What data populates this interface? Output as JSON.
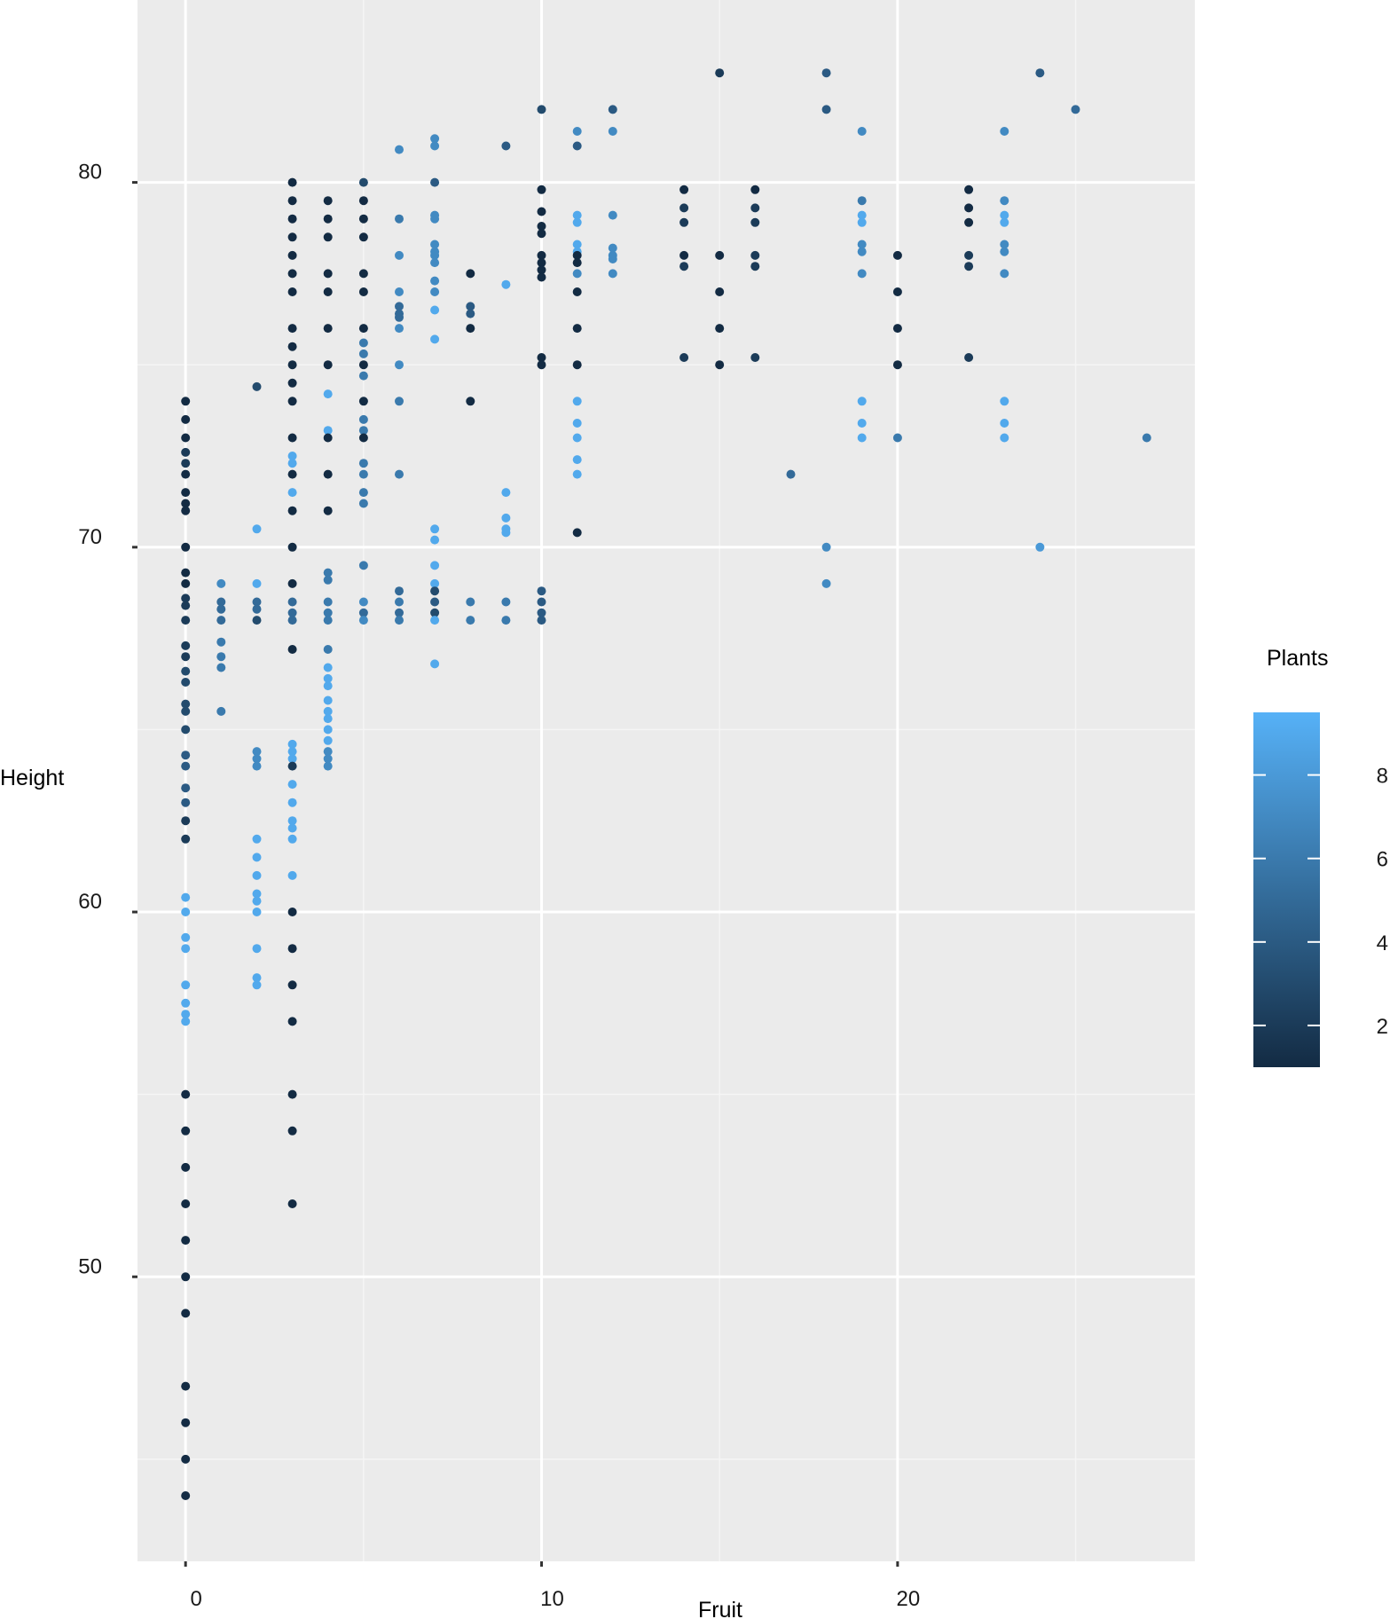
{
  "chart_data": {
    "type": "scatter",
    "title": "",
    "xlabel": "Fruit",
    "ylabel": "Height",
    "xlim": [
      -1.35,
      28.35
    ],
    "ylim": [
      42.2,
      85.0
    ],
    "x_major_ticks": [
      0,
      10,
      20
    ],
    "x_minor_ticks": [
      5,
      15,
      25
    ],
    "y_major_ticks": [
      50,
      60,
      70,
      80
    ],
    "y_minor_ticks": [
      45,
      55,
      65,
      75
    ],
    "grid": true,
    "colorbar": {
      "title": "Plants",
      "min": 1,
      "max": 9.5,
      "ticks": [
        2,
        4,
        6,
        8
      ],
      "low_color": "#132B43",
      "high_color": "#56B1F7",
      "placement": "right"
    },
    "colors": {
      "panel_background": "#EBEBEB",
      "grid_major": "#FFFFFF",
      "grid_minor": "#F5F5F5"
    },
    "points": [
      [
        0,
        74,
        1
      ],
      [
        0,
        73.5,
        1
      ],
      [
        0,
        73,
        1
      ],
      [
        0,
        72.6,
        2
      ],
      [
        0,
        72.3,
        2
      ],
      [
        0,
        72,
        1
      ],
      [
        0,
        71.5,
        1
      ],
      [
        0,
        71.2,
        1
      ],
      [
        0,
        71,
        1
      ],
      [
        0,
        70,
        1
      ],
      [
        0,
        69.3,
        1
      ],
      [
        0,
        69,
        1
      ],
      [
        0,
        68.6,
        2
      ],
      [
        0,
        68.4,
        2
      ],
      [
        0,
        68,
        2
      ],
      [
        0,
        67.3,
        2
      ],
      [
        0,
        67,
        2
      ],
      [
        0,
        66.6,
        3
      ],
      [
        0,
        66.3,
        3
      ],
      [
        0,
        65.7,
        3
      ],
      [
        0,
        65.5,
        3
      ],
      [
        0,
        65,
        3
      ],
      [
        0,
        64.3,
        4
      ],
      [
        0,
        64,
        4
      ],
      [
        0,
        63.4,
        4
      ],
      [
        0,
        63,
        4
      ],
      [
        0,
        62.5,
        2
      ],
      [
        0,
        62,
        2
      ],
      [
        0,
        60.4,
        9
      ],
      [
        0,
        60,
        9
      ],
      [
        0,
        59.3,
        9
      ],
      [
        0,
        59,
        9
      ],
      [
        0,
        58,
        9
      ],
      [
        0,
        57.5,
        9
      ],
      [
        0,
        57.2,
        9
      ],
      [
        0,
        57,
        9
      ],
      [
        0,
        55,
        1
      ],
      [
        0,
        54,
        1
      ],
      [
        0,
        53,
        1
      ],
      [
        0,
        52,
        1
      ],
      [
        0,
        51,
        1
      ],
      [
        0,
        50,
        1
      ],
      [
        0,
        49,
        1
      ],
      [
        0,
        47,
        1
      ],
      [
        0,
        46,
        1
      ],
      [
        0,
        45,
        1
      ],
      [
        0,
        44,
        1
      ],
      [
        1,
        69,
        7
      ],
      [
        1,
        68.5,
        5
      ],
      [
        1,
        68.3,
        5
      ],
      [
        1,
        68,
        5
      ],
      [
        1,
        67.4,
        6
      ],
      [
        1,
        67,
        6
      ],
      [
        1,
        66.7,
        6
      ],
      [
        1,
        65.5,
        6
      ],
      [
        2,
        74.4,
        3
      ],
      [
        2,
        70.5,
        9
      ],
      [
        2,
        69,
        9
      ],
      [
        2,
        68.5,
        5
      ],
      [
        2,
        68.3,
        5
      ],
      [
        2,
        68,
        3
      ],
      [
        2,
        64.4,
        7
      ],
      [
        2,
        64.2,
        7
      ],
      [
        2,
        64,
        7
      ],
      [
        2,
        62,
        9
      ],
      [
        2,
        61.5,
        9
      ],
      [
        2,
        61,
        9
      ],
      [
        2,
        60.5,
        9
      ],
      [
        2,
        60.3,
        9
      ],
      [
        2,
        60,
        9
      ],
      [
        2,
        59,
        9
      ],
      [
        2,
        58.2,
        9
      ],
      [
        2,
        58,
        9
      ],
      [
        3,
        80,
        1
      ],
      [
        3,
        79.5,
        1
      ],
      [
        3,
        79,
        1
      ],
      [
        3,
        78.5,
        1
      ],
      [
        3,
        78,
        1
      ],
      [
        3,
        77.5,
        1
      ],
      [
        3,
        77,
        1
      ],
      [
        3,
        76,
        1
      ],
      [
        3,
        75.5,
        1
      ],
      [
        3,
        75,
        1
      ],
      [
        3,
        74.5,
        1
      ],
      [
        3,
        74,
        1
      ],
      [
        3,
        73,
        1
      ],
      [
        3,
        72.5,
        9
      ],
      [
        3,
        72.3,
        9
      ],
      [
        3,
        72,
        1
      ],
      [
        3,
        71.5,
        9
      ],
      [
        3,
        71,
        1
      ],
      [
        3,
        70,
        1
      ],
      [
        3,
        69,
        1
      ],
      [
        3,
        68.5,
        5
      ],
      [
        3,
        68.2,
        5
      ],
      [
        3,
        68,
        5
      ],
      [
        3,
        67.2,
        1
      ],
      [
        3,
        64.6,
        9
      ],
      [
        3,
        64.4,
        9
      ],
      [
        3,
        64.2,
        9
      ],
      [
        3,
        64,
        2
      ],
      [
        3,
        63.5,
        9
      ],
      [
        3,
        63,
        9
      ],
      [
        3,
        62.5,
        9
      ],
      [
        3,
        62.3,
        9
      ],
      [
        3,
        62,
        9
      ],
      [
        3,
        61,
        9
      ],
      [
        3,
        60,
        1
      ],
      [
        3,
        59,
        1
      ],
      [
        3,
        58,
        1
      ],
      [
        3,
        57,
        1
      ],
      [
        3,
        55,
        1
      ],
      [
        3,
        54,
        1
      ],
      [
        3,
        52,
        1
      ],
      [
        4,
        79.5,
        1
      ],
      [
        4,
        79,
        1
      ],
      [
        4,
        78.5,
        1
      ],
      [
        4,
        77.5,
        1
      ],
      [
        4,
        77,
        1
      ],
      [
        4,
        76,
        1
      ],
      [
        4,
        75,
        1
      ],
      [
        4,
        74.2,
        9
      ],
      [
        4,
        73.2,
        9
      ],
      [
        4,
        73,
        1
      ],
      [
        4,
        72,
        1
      ],
      [
        4,
        71,
        1
      ],
      [
        4,
        69.3,
        6
      ],
      [
        4,
        69.1,
        6
      ],
      [
        4,
        68.5,
        6
      ],
      [
        4,
        68.2,
        6
      ],
      [
        4,
        68,
        6
      ],
      [
        4,
        67.2,
        6
      ],
      [
        4,
        66.7,
        9
      ],
      [
        4,
        66.4,
        9
      ],
      [
        4,
        66.2,
        9
      ],
      [
        4,
        65.8,
        9
      ],
      [
        4,
        65.5,
        9
      ],
      [
        4,
        65.3,
        9
      ],
      [
        4,
        65,
        9
      ],
      [
        4,
        64.7,
        9
      ],
      [
        4,
        64.4,
        7
      ],
      [
        4,
        64.2,
        7
      ],
      [
        4,
        64,
        7
      ],
      [
        5,
        80,
        3
      ],
      [
        5,
        79.5,
        1
      ],
      [
        5,
        79,
        1
      ],
      [
        5,
        78.5,
        1
      ],
      [
        5,
        77.5,
        1
      ],
      [
        5,
        77,
        1
      ],
      [
        5,
        76,
        1
      ],
      [
        5,
        75.6,
        6
      ],
      [
        5,
        75.3,
        6
      ],
      [
        5,
        75,
        1
      ],
      [
        5,
        74.7,
        6
      ],
      [
        5,
        74,
        1
      ],
      [
        5,
        73.5,
        6
      ],
      [
        5,
        73.2,
        6
      ],
      [
        5,
        73,
        1
      ],
      [
        5,
        72.3,
        6
      ],
      [
        5,
        72,
        6
      ],
      [
        5,
        71.5,
        6
      ],
      [
        5,
        71.2,
        6
      ],
      [
        5,
        69.5,
        6
      ],
      [
        5,
        68.5,
        7
      ],
      [
        5,
        68.2,
        5
      ],
      [
        5,
        68,
        7
      ],
      [
        6,
        80.9,
        7
      ],
      [
        6,
        79,
        6
      ],
      [
        6,
        78,
        7
      ],
      [
        6,
        77,
        7
      ],
      [
        6,
        76.6,
        5
      ],
      [
        6,
        76.4,
        5
      ],
      [
        6,
        76.3,
        5
      ],
      [
        6,
        76,
        7
      ],
      [
        6,
        75,
        7
      ],
      [
        6,
        74,
        6
      ],
      [
        6,
        72,
        6
      ],
      [
        6,
        68.8,
        5
      ],
      [
        6,
        68.5,
        6
      ],
      [
        6,
        68.2,
        5
      ],
      [
        6,
        68,
        6
      ],
      [
        7,
        81.2,
        7
      ],
      [
        7,
        81,
        7
      ],
      [
        7,
        80,
        4
      ],
      [
        7,
        79.1,
        7
      ],
      [
        7,
        79,
        7
      ],
      [
        7,
        78.3,
        7
      ],
      [
        7,
        78.1,
        7
      ],
      [
        7,
        78,
        7
      ],
      [
        7,
        77.8,
        7
      ],
      [
        7,
        77.3,
        7
      ],
      [
        7,
        77,
        7
      ],
      [
        7,
        76.5,
        9
      ],
      [
        7,
        75.7,
        9
      ],
      [
        7,
        70.5,
        9
      ],
      [
        7,
        70.2,
        9
      ],
      [
        7,
        69.5,
        9
      ],
      [
        7,
        69,
        9
      ],
      [
        7,
        68.8,
        3
      ],
      [
        7,
        68.5,
        4
      ],
      [
        7,
        68.2,
        3
      ],
      [
        7,
        68,
        9
      ],
      [
        7,
        66.8,
        9
      ],
      [
        8,
        77.5,
        1
      ],
      [
        8,
        76.6,
        4
      ],
      [
        8,
        76.4,
        4
      ],
      [
        8,
        76,
        1
      ],
      [
        8,
        74,
        1
      ],
      [
        8,
        68.5,
        6
      ],
      [
        8,
        68,
        6
      ],
      [
        9,
        81,
        4
      ],
      [
        9,
        77.2,
        9
      ],
      [
        9,
        71.5,
        9
      ],
      [
        9,
        70.8,
        9
      ],
      [
        9,
        70.5,
        9
      ],
      [
        9,
        70.4,
        9
      ],
      [
        9,
        68.5,
        6
      ],
      [
        9,
        68,
        6
      ],
      [
        10,
        82,
        3
      ],
      [
        10,
        79.8,
        1
      ],
      [
        10,
        79.2,
        1
      ],
      [
        10,
        78.8,
        1
      ],
      [
        10,
        78.6,
        1
      ],
      [
        10,
        78,
        1
      ],
      [
        10,
        77.8,
        1
      ],
      [
        10,
        77.6,
        1
      ],
      [
        10,
        77.4,
        1
      ],
      [
        10,
        75.2,
        1
      ],
      [
        10,
        75,
        1
      ],
      [
        10,
        68.8,
        4
      ],
      [
        10,
        68.5,
        4
      ],
      [
        10,
        68.2,
        4
      ],
      [
        10,
        68,
        4
      ],
      [
        11,
        81.4,
        7
      ],
      [
        11,
        81,
        4
      ],
      [
        11,
        79.1,
        9
      ],
      [
        11,
        78.9,
        9
      ],
      [
        11,
        78.3,
        9
      ],
      [
        11,
        78.1,
        9
      ],
      [
        11,
        78,
        1
      ],
      [
        11,
        77.8,
        1
      ],
      [
        11,
        77.5,
        7
      ],
      [
        11,
        77,
        1
      ],
      [
        11,
        76,
        1
      ],
      [
        11,
        75,
        1
      ],
      [
        11,
        74,
        9
      ],
      [
        11,
        73.4,
        9
      ],
      [
        11,
        73,
        9
      ],
      [
        11,
        72.4,
        9
      ],
      [
        11,
        72,
        9
      ],
      [
        11,
        70.4,
        1
      ],
      [
        12,
        82,
        4
      ],
      [
        12,
        81.4,
        7
      ],
      [
        12,
        79.1,
        7
      ],
      [
        12,
        78.2,
        7
      ],
      [
        12,
        78,
        7
      ],
      [
        12,
        77.9,
        7
      ],
      [
        12,
        77.5,
        7
      ],
      [
        14,
        79.8,
        1
      ],
      [
        14,
        79.3,
        2
      ],
      [
        14,
        78.9,
        2
      ],
      [
        14,
        78,
        1
      ],
      [
        14,
        77.7,
        2
      ],
      [
        14,
        75.2,
        2
      ],
      [
        15,
        83,
        2
      ],
      [
        15,
        78,
        1
      ],
      [
        15,
        77,
        1
      ],
      [
        15,
        76,
        1
      ],
      [
        15,
        75,
        1
      ],
      [
        16,
        79.8,
        1
      ],
      [
        16,
        79.3,
        2
      ],
      [
        16,
        78.9,
        2
      ],
      [
        16,
        78,
        2
      ],
      [
        16,
        77.7,
        2
      ],
      [
        16,
        75.2,
        2
      ],
      [
        17,
        72,
        5
      ],
      [
        18,
        83,
        4
      ],
      [
        18,
        82,
        4
      ],
      [
        18,
        70,
        7
      ],
      [
        18,
        69,
        7
      ],
      [
        19,
        81.4,
        7
      ],
      [
        19,
        79.5,
        6
      ],
      [
        19,
        79.1,
        9
      ],
      [
        19,
        78.9,
        9
      ],
      [
        19,
        78.3,
        7
      ],
      [
        19,
        78.1,
        7
      ],
      [
        19,
        77.5,
        7
      ],
      [
        19,
        74,
        9
      ],
      [
        19,
        73.4,
        9
      ],
      [
        19,
        73,
        9
      ],
      [
        20,
        78,
        1
      ],
      [
        20,
        77,
        1
      ],
      [
        20,
        76,
        1
      ],
      [
        20,
        75,
        1
      ],
      [
        20,
        73,
        6
      ],
      [
        22,
        79.8,
        1
      ],
      [
        22,
        79.3,
        1
      ],
      [
        22,
        78.9,
        1
      ],
      [
        22,
        78,
        2
      ],
      [
        22,
        77.7,
        2
      ],
      [
        22,
        75.2,
        2
      ],
      [
        23,
        81.4,
        7
      ],
      [
        23,
        79.5,
        7
      ],
      [
        23,
        79.1,
        9
      ],
      [
        23,
        78.9,
        9
      ],
      [
        23,
        78.3,
        7
      ],
      [
        23,
        78.1,
        7
      ],
      [
        23,
        77.5,
        7
      ],
      [
        23,
        74,
        9
      ],
      [
        23,
        73.4,
        9
      ],
      [
        23,
        73,
        9
      ],
      [
        24,
        83,
        4
      ],
      [
        24,
        70,
        8
      ],
      [
        25,
        82,
        5
      ],
      [
        27,
        73,
        6
      ]
    ]
  }
}
